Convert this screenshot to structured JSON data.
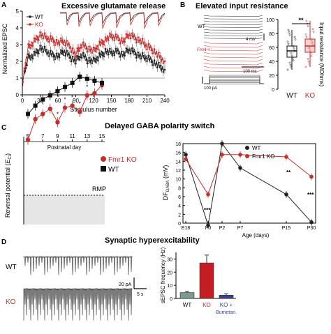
{
  "panel_a": {
    "letter": "A",
    "title": "Excessive glutamate release",
    "legend": [
      "WT",
      "KO"
    ],
    "ylabel": "Normalized EPSC",
    "xlabel": "Stimulus number",
    "colors": {
      "wt": "#222222",
      "ko": "#c0302e"
    }
  },
  "panel_b": {
    "letter": "B",
    "title": "Elevated input resistance",
    "trace_label_wt": "WT",
    "trace_label_ko": "Fmr1⁻/⁻",
    "scale_mv": "4 mV",
    "scale_ms": "100 ms",
    "scale_pa": "100 pA",
    "significance": "**"
  },
  "panel_c": {
    "letter": "C",
    "title": "Delayed GABA polarity switch",
    "postnatal_label": "Postnatal day",
    "legend": [
      "Fmr1 KO",
      "WT"
    ],
    "rmp_label": "RMP",
    "ylabel_prefix": "Reversal potential (",
    "ylabel_symbol": "E",
    "ylabel_subscript": "Cl",
    "ylabel_suffix": ")",
    "right_ylabel": "DF",
    "right_ylabel_sub": "GABA",
    "right_ylabel_unit": " (mV)",
    "right_xlabel": "Age (days)",
    "stars_p0": "***",
    "stars_p15": "**",
    "stars_p30": "***"
  },
  "panel_d": {
    "letter": "D",
    "title": "Synaptic hyperexcitability",
    "trace_label_wt": "WT",
    "trace_label_ko": "KO",
    "scale_pa": "20 pA",
    "scale_s": "5 s"
  },
  "chart_data": [
    {
      "type": "line",
      "panel": "A",
      "xlabel": "Stimulus number",
      "ylabel": "Normalized EPSC",
      "xlim": [
        0,
        240
      ],
      "ylim": [
        0,
        5
      ],
      "xticks": [
        0,
        30,
        60,
        90,
        120,
        150,
        180,
        210,
        240
      ],
      "yticks": [
        0,
        1,
        2,
        3,
        4,
        5
      ],
      "series": [
        {
          "name": "WT",
          "x": [
            1,
            10,
            20,
            30,
            40,
            50,
            60,
            70,
            80,
            90,
            100,
            110,
            120,
            130,
            140,
            150,
            160,
            170,
            180,
            190,
            200,
            210,
            220,
            230,
            240
          ],
          "values": [
            1.0,
            2.2,
            2.4,
            2.8,
            2.6,
            2.4,
            2.3,
            2.6,
            2.3,
            2.0,
            2.4,
            2.1,
            2.0,
            2.3,
            2.6,
            2.5,
            2.6,
            2.4,
            2.7,
            2.5,
            2.3,
            2.2,
            2.0,
            1.7,
            1.5
          ]
        },
        {
          "name": "KO",
          "x": [
            1,
            10,
            20,
            30,
            40,
            50,
            60,
            70,
            80,
            90,
            100,
            110,
            120,
            130,
            140,
            150,
            160,
            170,
            180,
            190,
            200,
            210,
            220,
            230,
            240
          ],
          "values": [
            1.0,
            2.8,
            3.2,
            3.6,
            3.4,
            3.3,
            3.1,
            3.2,
            2.9,
            2.4,
            3.0,
            2.8,
            2.6,
            3.0,
            3.3,
            3.5,
            3.4,
            3.2,
            3.6,
            3.4,
            3.2,
            2.9,
            2.7,
            2.3,
            2.0
          ]
        }
      ]
    },
    {
      "type": "box",
      "panel": "B",
      "ylabel": "Input resistance (MOhms)",
      "ylim": [
        0,
        100
      ],
      "yticks": [
        0,
        20,
        40,
        60,
        80,
        100
      ],
      "categories": [
        "WT",
        "KO"
      ],
      "boxes": [
        {
          "name": "WT",
          "whisker_low": 28,
          "q1": 46,
          "median": 55,
          "q3": 62,
          "whisker_high": 85
        },
        {
          "name": "KO",
          "whisker_low": 32,
          "q1": 53,
          "median": 62,
          "q3": 72,
          "whisker_high": 98
        }
      ]
    },
    {
      "type": "line",
      "panel": "C-left",
      "xlabel": "Postnatal day",
      "x_ticks": [
        5,
        7,
        9,
        11,
        13,
        15
      ],
      "series": [
        {
          "name": "Fmr1 KO",
          "x": [
            5,
            6,
            7,
            8,
            9,
            10,
            11,
            12,
            13,
            14,
            15
          ],
          "values": [
            -5,
            -25,
            -30,
            -35,
            -22,
            -36,
            -38,
            -32,
            -48,
            -50,
            -58
          ]
        },
        {
          "name": "WT",
          "x": [
            5,
            6,
            7,
            8,
            9,
            10,
            11,
            12,
            13,
            14,
            15
          ],
          "values": [
            -30,
            -38,
            -44,
            -48,
            -52,
            -56,
            -60,
            -66,
            -64,
            -62,
            -60
          ]
        }
      ],
      "significance_days": [
        9,
        10,
        11,
        12,
        13
      ]
    },
    {
      "type": "line",
      "panel": "C-right",
      "xlabel": "Age (days)",
      "ylabel": "DF GABA (mV)",
      "ylim": [
        0,
        18
      ],
      "yticks": [
        0,
        2,
        4,
        6,
        8,
        10,
        12,
        14,
        16,
        18
      ],
      "categories": [
        "E18",
        "P0",
        "P2",
        "P7",
        "P15",
        "P30"
      ],
      "series": [
        {
          "name": "WT",
          "values": [
            15.5,
            -0.5,
            18,
            12.5,
            6.5,
            0.2
          ]
        },
        {
          "name": "Fmr1 KO",
          "values": [
            14.5,
            6.5,
            15.5,
            15.5,
            15,
            10.5
          ]
        }
      ]
    },
    {
      "type": "bar",
      "panel": "D",
      "ylabel": "sEPSC frequency (Hz)",
      "ylim": [
        0,
        35
      ],
      "categories": [
        "WT",
        "KO",
        "KO + Bumetan."
      ],
      "values": [
        4.5,
        27,
        2.5
      ],
      "errors": [
        1.0,
        6.0,
        1.0
      ],
      "colors": [
        "#7c9a8d",
        "#c41e24",
        "#3d3f8c"
      ]
    }
  ]
}
